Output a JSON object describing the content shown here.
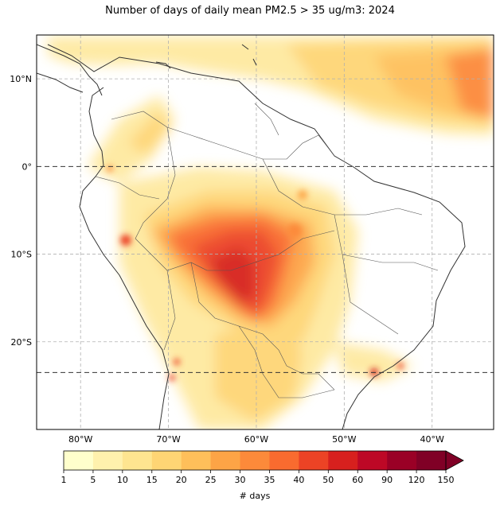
{
  "title": "Number of days of daily mean PM2.5 > 35 ug/m3: 2024",
  "map": {
    "lon_range": [
      -85,
      -33
    ],
    "lat_range": [
      -30,
      15
    ],
    "lon_ticks": [
      {
        "value": -80,
        "label": "80°W"
      },
      {
        "value": -70,
        "label": "70°W"
      },
      {
        "value": -60,
        "label": "60°W"
      },
      {
        "value": -50,
        "label": "50°W"
      },
      {
        "value": -40,
        "label": "40°W"
      }
    ],
    "lat_ticks": [
      {
        "value": 10,
        "label": "10°N"
      },
      {
        "value": 0,
        "label": "0°"
      },
      {
        "value": -10,
        "label": "10°S"
      },
      {
        "value": -20,
        "label": "20°S"
      }
    ],
    "dashed_lines_lat": [
      0,
      -23.5
    ],
    "colors": {
      "land_outline": "#333333",
      "grid": "#b0b0b0"
    }
  },
  "colorbar": {
    "label": "# days",
    "ticks": [
      "1",
      "5",
      "10",
      "15",
      "20",
      "25",
      "30",
      "35",
      "40",
      "50",
      "60",
      "90",
      "120",
      "150"
    ],
    "colors": [
      "#ffffcc",
      "#fff1ad",
      "#fee590",
      "#fed574",
      "#febf5a",
      "#fda446",
      "#fc8a3a",
      "#f96b2f",
      "#ec4325",
      "#d7201e",
      "#bd0826",
      "#9a0026",
      "#800026"
    ]
  }
}
